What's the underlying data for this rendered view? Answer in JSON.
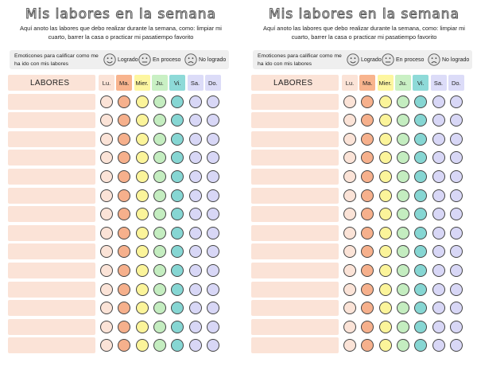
{
  "title": "Mis labores en la semana",
  "subtitle": "Aquí anoto las labores que debo realizar durante la semana, como: limpiar mi cuarto, barrer la casa o practicar mi pasatiempo favorito",
  "emoticons": {
    "description": "Emoticones para calificar como me ha ido con mis labores",
    "items": [
      {
        "icon": "happy-face-icon",
        "label": "Logrado"
      },
      {
        "icon": "neutral-face-icon",
        "label": "En proceso"
      },
      {
        "icon": "sad-face-icon",
        "label": "No logrado"
      }
    ]
  },
  "table": {
    "task_header": "LABORES",
    "days": [
      {
        "label": "Lu.",
        "color": "#fbe3d7",
        "circle": "#fbe3d7"
      },
      {
        "label": "Ma.",
        "color": "#f8b48e",
        "circle": "#f6b08c"
      },
      {
        "label": "Mier.",
        "color": "#fdf6a0",
        "circle": "#fbf49a"
      },
      {
        "label": "Ju.",
        "color": "#c9f0c4",
        "circle": "#c4edc0"
      },
      {
        "label": "Vi.",
        "color": "#8edad8",
        "circle": "#86d6d3"
      },
      {
        "label": "Sa.",
        "color": "#dcdcf8",
        "circle": "#d8d7f6"
      },
      {
        "label": "Do.",
        "color": "#dcdcf8",
        "circle": "#d8d7f6"
      }
    ],
    "row_count": 14
  }
}
